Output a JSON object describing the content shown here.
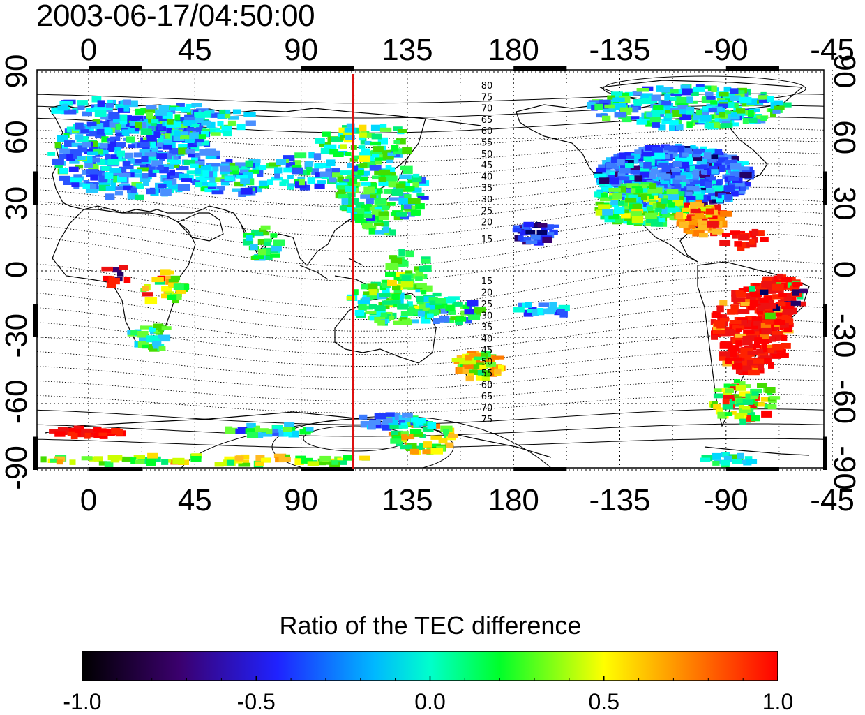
{
  "title": "2003-06-17/04:50:00",
  "map": {
    "x_ticks": [
      "0",
      "45",
      "90",
      "135",
      "180",
      "-135",
      "-90",
      "-45"
    ],
    "y_ticks": [
      "90",
      "60",
      "30",
      "0",
      "-30",
      "-60",
      "-90"
    ],
    "meridian_marker_longitude": 112,
    "northern_contour_labels": [
      "80",
      "75",
      "70",
      "65",
      "60",
      "55",
      "50",
      "45",
      "40",
      "35",
      "30",
      "25",
      "20",
      "15"
    ],
    "southern_contour_labels": [
      "15",
      "20",
      "25",
      "30",
      "35",
      "40",
      "45",
      "50",
      "55",
      "60",
      "65",
      "70",
      "75"
    ],
    "colors": {
      "marker": "#dd1111",
      "frame": "#000000"
    }
  },
  "colorbar": {
    "title": "Ratio of the TEC difference",
    "tick_labels": [
      "-1.0",
      "-0.5",
      "0.0",
      "0.5",
      "1.0"
    ],
    "range": [
      -1.0,
      1.0
    ],
    "colors": [
      "#000000",
      "#3b006e",
      "#1f22ff",
      "#00ffff",
      "#00ff2a",
      "#ffff00",
      "#ff7a00",
      "#ff0000"
    ]
  }
}
